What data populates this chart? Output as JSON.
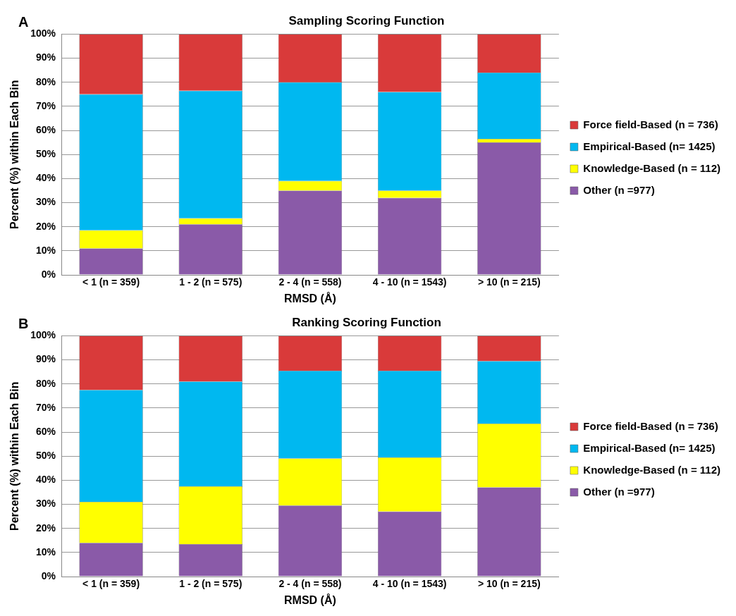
{
  "chart_data": [
    {
      "type": "bar",
      "title": "Sampling Scoring Function",
      "xlabel": "RMSD (Å)",
      "ylabel": "Percent (%) within Each Bin",
      "annotations": [
        "A"
      ],
      "stacked": true,
      "grid": "y",
      "legend": "right",
      "categories": [
        "< 1 (n = 359)",
        "1 - 2 (n = 575)",
        "2 - 4 (n = 558)",
        "4 - 10 (n = 1543)",
        "> 10 (n = 215)"
      ],
      "ylim": [
        0,
        100
      ],
      "yticks": [
        {
          "value": 0,
          "label": "0%"
        },
        {
          "value": 10,
          "label": "10%"
        },
        {
          "value": 20,
          "label": "20%"
        },
        {
          "value": 30,
          "label": "30%"
        },
        {
          "value": 40,
          "label": "40%"
        },
        {
          "value": 50,
          "label": "50%"
        },
        {
          "value": 60,
          "label": "60%"
        },
        {
          "value": 70,
          "label": "70%"
        },
        {
          "value": 80,
          "label": "80%"
        },
        {
          "value": 90,
          "label": "90%"
        },
        {
          "value": 100,
          "label": "100%"
        }
      ],
      "series": [
        {
          "name": "Other (n =977)",
          "color": "#8a5aa8",
          "values": [
            11,
            21,
            35,
            32,
            55
          ]
        },
        {
          "name": "Knowledge-Based (n = 112)",
          "color": "#ffff00",
          "values": [
            7.5,
            2.5,
            4,
            3,
            1.5
          ]
        },
        {
          "name": "Empirical-Based (n= 1425)",
          "color": "#00b8f0",
          "values": [
            56.5,
            53,
            41,
            41,
            27.5
          ]
        },
        {
          "name": "Force field-Based (n = 736)",
          "color": "#d93a3a",
          "values": [
            25,
            23.5,
            20,
            24,
            16
          ]
        }
      ]
    },
    {
      "type": "bar",
      "title": "Ranking Scoring Function",
      "xlabel": "RMSD (Å)",
      "ylabel": "Percent (%) within Each Bin",
      "annotations": [
        "B"
      ],
      "stacked": true,
      "grid": "y",
      "legend": "right",
      "categories": [
        "< 1 (n = 359)",
        "1 - 2 (n = 575)",
        "2 - 4 (n = 558)",
        "4 - 10 (n = 1543)",
        "> 10 (n = 215)"
      ],
      "ylim": [
        0,
        100
      ],
      "yticks": [
        {
          "value": 0,
          "label": "0%"
        },
        {
          "value": 10,
          "label": "10%"
        },
        {
          "value": 20,
          "label": "20%"
        },
        {
          "value": 30,
          "label": "30%"
        },
        {
          "value": 40,
          "label": "40%"
        },
        {
          "value": 50,
          "label": "50%"
        },
        {
          "value": 60,
          "label": "60%"
        },
        {
          "value": 70,
          "label": "70%"
        },
        {
          "value": 80,
          "label": "80%"
        },
        {
          "value": 90,
          "label": "90%"
        },
        {
          "value": 100,
          "label": "100%"
        }
      ],
      "series": [
        {
          "name": "Other (n =977)",
          "color": "#8a5aa8",
          "values": [
            14,
            13.5,
            29.5,
            27,
            37
          ]
        },
        {
          "name": "Knowledge-Based (n = 112)",
          "color": "#ffff00",
          "values": [
            17,
            24,
            19.5,
            22.5,
            26.5
          ]
        },
        {
          "name": "Empirical-Based (n= 1425)",
          "color": "#00b8f0",
          "values": [
            46.5,
            43.5,
            36.5,
            36,
            26
          ]
        },
        {
          "name": "Force field-Based (n = 736)",
          "color": "#d93a3a",
          "values": [
            22.5,
            19,
            14.5,
            14.5,
            10.5
          ]
        }
      ]
    }
  ]
}
